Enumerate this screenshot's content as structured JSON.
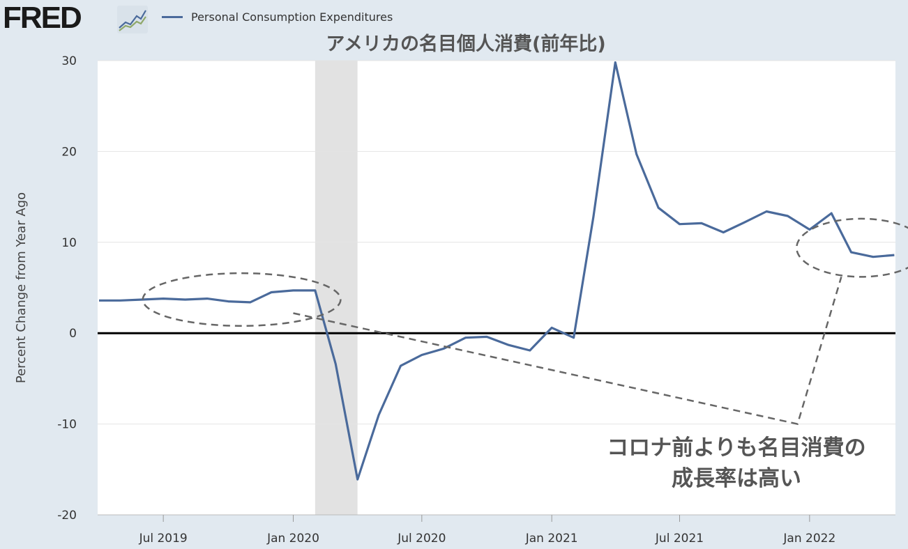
{
  "header": {
    "logo_text": "FRED",
    "logo_mark_icon": "line-chart-icon"
  },
  "legend": {
    "label": "Personal Consumption Expenditures",
    "color": "#4a6a9b"
  },
  "colors": {
    "background": "#e1e9f0",
    "plot_background": "#ffffff",
    "recession_shade": "#e2e2e2",
    "zero_line": "#000000",
    "annotation": "#666666"
  },
  "chart_data": {
    "type": "line",
    "title": "アメリカの名目個人消費(前年比)",
    "ylabel": "Percent Change from Year Ago",
    "xlabel": "",
    "ylim": [
      -20,
      30
    ],
    "yticks": [
      30,
      20,
      10,
      0,
      -10,
      -20
    ],
    "xlim": [
      "2019-04-01",
      "2022-04-01"
    ],
    "x_ticks": [
      {
        "date": "2019-07-01",
        "label": "Jul 2019"
      },
      {
        "date": "2020-01-01",
        "label": "Jan 2020"
      },
      {
        "date": "2020-07-01",
        "label": "Jul 2020"
      },
      {
        "date": "2021-01-01",
        "label": "Jan 2021"
      },
      {
        "date": "2021-07-01",
        "label": "Jul 2021"
      },
      {
        "date": "2022-01-01",
        "label": "Jan 2022"
      }
    ],
    "recession": [
      "2020-02-01",
      "2020-04-01"
    ],
    "grid": true,
    "legend_position": "top",
    "series": [
      {
        "name": "Personal Consumption Expenditures",
        "color": "#4a6a9b",
        "points": [
          {
            "x": "2019-04-01",
            "y": 3.6
          },
          {
            "x": "2019-05-01",
            "y": 3.6
          },
          {
            "x": "2019-06-01",
            "y": 3.7
          },
          {
            "x": "2019-07-01",
            "y": 3.8
          },
          {
            "x": "2019-08-01",
            "y": 3.7
          },
          {
            "x": "2019-09-01",
            "y": 3.8
          },
          {
            "x": "2019-10-01",
            "y": 3.5
          },
          {
            "x": "2019-11-01",
            "y": 3.4
          },
          {
            "x": "2019-12-01",
            "y": 4.5
          },
          {
            "x": "2020-01-01",
            "y": 4.7
          },
          {
            "x": "2020-02-01",
            "y": 4.7
          },
          {
            "x": "2020-03-01",
            "y": -3.4
          },
          {
            "x": "2020-04-01",
            "y": -16.1
          },
          {
            "x": "2020-05-01",
            "y": -9.0
          },
          {
            "x": "2020-06-01",
            "y": -3.6
          },
          {
            "x": "2020-07-01",
            "y": -2.4
          },
          {
            "x": "2020-08-01",
            "y": -1.7
          },
          {
            "x": "2020-09-01",
            "y": -0.5
          },
          {
            "x": "2020-10-01",
            "y": -0.4
          },
          {
            "x": "2020-11-01",
            "y": -1.3
          },
          {
            "x": "2020-12-01",
            "y": -1.9
          },
          {
            "x": "2021-01-01",
            "y": 0.6
          },
          {
            "x": "2021-02-01",
            "y": -0.5
          },
          {
            "x": "2021-03-01",
            "y": 12.8
          },
          {
            "x": "2021-04-01",
            "y": 29.8
          },
          {
            "x": "2021-05-01",
            "y": 19.7
          },
          {
            "x": "2021-06-01",
            "y": 13.8
          },
          {
            "x": "2021-07-01",
            "y": 12.0
          },
          {
            "x": "2021-08-01",
            "y": 12.1
          },
          {
            "x": "2021-09-01",
            "y": 11.1
          },
          {
            "x": "2021-10-01",
            "y": 12.2
          },
          {
            "x": "2021-11-01",
            "y": 13.4
          },
          {
            "x": "2021-12-01",
            "y": 12.9
          },
          {
            "x": "2022-01-01",
            "y": 11.4
          },
          {
            "x": "2022-02-01",
            "y": 13.2
          },
          {
            "x": "2022-03-01",
            "y": 8.9
          },
          {
            "x": "2022-04-01",
            "y": 8.4
          },
          {
            "x": "2022-05-01",
            "y": 8.6
          }
        ]
      }
    ],
    "annotations": {
      "text_lines": [
        "コロナ前よりも名目消費の",
        "成長率は高い"
      ],
      "ellipses": [
        {
          "center": {
            "x": "2019-10-20",
            "y": 3.7
          },
          "rx_months": 4.6,
          "ry_units": 2.9
        },
        {
          "center": {
            "x": "2022-03-15",
            "y": 9.4
          },
          "rx_months": 3.0,
          "ry_units": 3.2
        }
      ],
      "connector_points": [
        {
          "x": "2020-01-01",
          "y": 2.2
        },
        {
          "x": "2021-12-15",
          "y": -10.0
        },
        {
          "x": "2022-02-15",
          "y": 6.2
        }
      ]
    }
  }
}
